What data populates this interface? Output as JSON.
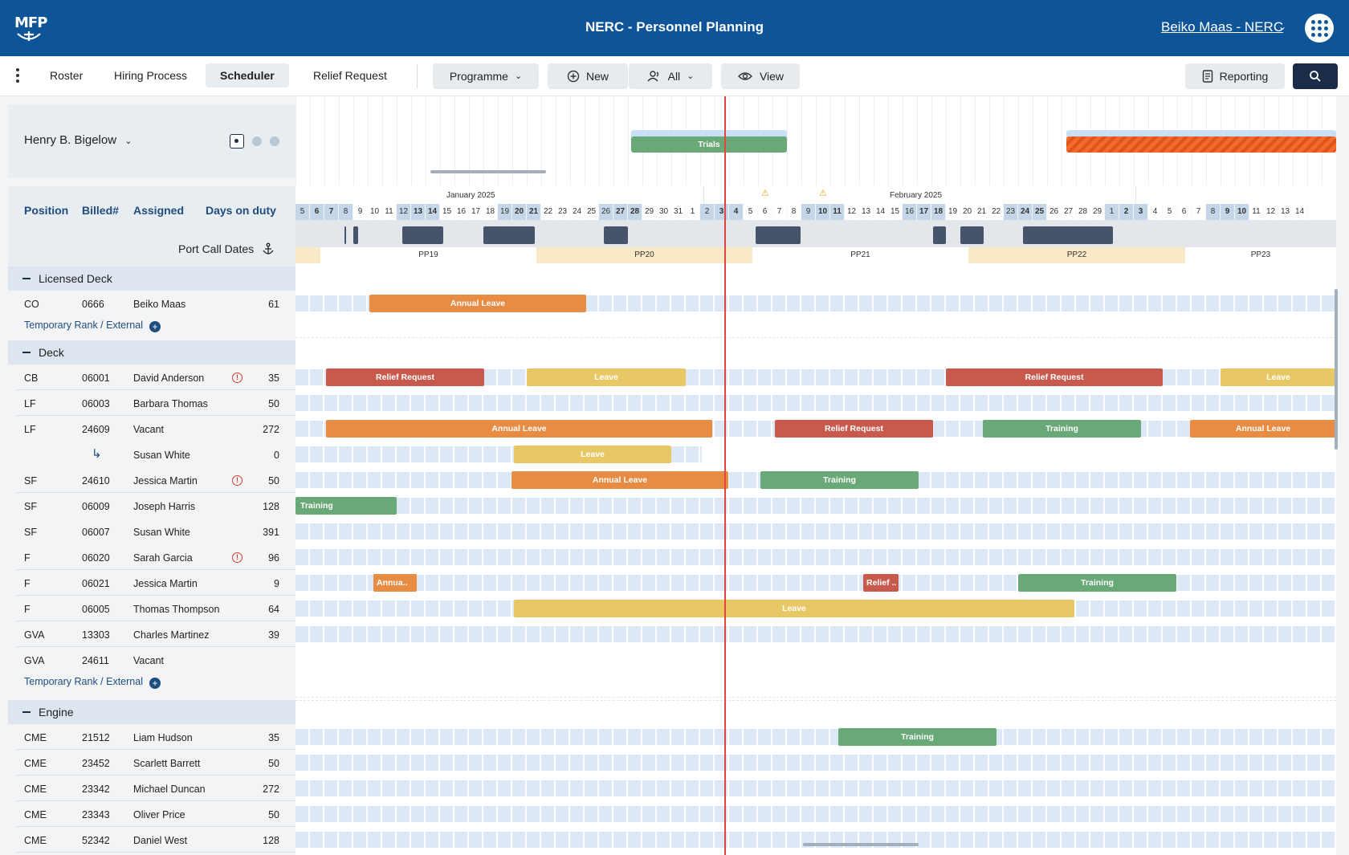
{
  "app": {
    "logo": "MFP",
    "title": "NERC - Personnel Planning",
    "user": "Beiko Maas - NERC"
  },
  "nav": {
    "tabs": [
      "Roster",
      "Hiring Process",
      "Scheduler",
      "Relief Request"
    ],
    "active_tab": "Scheduler"
  },
  "toolbar": {
    "programme": "Programme",
    "new": "New",
    "all": "All",
    "view": "View",
    "reporting": "Reporting"
  },
  "person": {
    "name": "Henry B. Bigelow"
  },
  "top_events": {
    "trials": "Trials"
  },
  "columns": {
    "position": "Position",
    "billed": "Billed#",
    "assigned": "Assigned",
    "days_on_duty": "Days on duty",
    "port_call": "Port Call Dates"
  },
  "months": [
    "January 2025",
    "February 2025"
  ],
  "pay_periods": [
    "PP19",
    "PP20",
    "PP21",
    "PP22",
    "PP23"
  ],
  "temp_rank_label": "Temporary Rank / External",
  "groups": [
    {
      "name": "Licensed Deck",
      "crew": [
        {
          "pos": "CO",
          "billed": "0666",
          "name": "Beiko Maas",
          "days": "61",
          "alert": false
        }
      ]
    },
    {
      "name": "Deck",
      "crew": [
        {
          "pos": "CB",
          "billed": "06001",
          "name": "David Anderson",
          "days": "35",
          "alert": true
        },
        {
          "pos": "LF",
          "billed": "06003",
          "name": "Barbara Thomas",
          "days": "50",
          "alert": false
        },
        {
          "pos": "LF",
          "billed": "24609",
          "name": "Vacant",
          "days": "272",
          "alert": false
        },
        {
          "pos": "↳",
          "billed": "",
          "name": "Susan White",
          "days": "0",
          "alert": false
        },
        {
          "pos": "SF",
          "billed": "24610",
          "name": "Jessica Martin",
          "days": "50",
          "alert": true
        },
        {
          "pos": "SF",
          "billed": "06009",
          "name": "Joseph Harris",
          "days": "128",
          "alert": false
        },
        {
          "pos": "SF",
          "billed": "06007",
          "name": "Susan White",
          "days": "391",
          "alert": false
        },
        {
          "pos": "F",
          "billed": "06020",
          "name": "Sarah Garcia",
          "days": "96",
          "alert": true
        },
        {
          "pos": "F",
          "billed": "06021",
          "name": "Jessica Martin",
          "days": "9",
          "alert": false
        },
        {
          "pos": "F",
          "billed": "06005",
          "name": "Thomas Thompson",
          "days": "64",
          "alert": false
        },
        {
          "pos": "GVA",
          "billed": "13303",
          "name": "Charles Martinez",
          "days": "39",
          "alert": false
        },
        {
          "pos": "GVA",
          "billed": "24611",
          "name": "Vacant",
          "days": "",
          "alert": false
        }
      ]
    },
    {
      "name": "Engine",
      "crew": [
        {
          "pos": "CME",
          "billed": "21512",
          "name": "Liam Hudson",
          "days": "35",
          "alert": false
        },
        {
          "pos": "CME",
          "billed": "23452",
          "name": "Scarlett Barrett",
          "days": "50",
          "alert": false
        },
        {
          "pos": "CME",
          "billed": "23342",
          "name": "Michael Duncan",
          "days": "272",
          "alert": false
        },
        {
          "pos": "CME",
          "billed": "23343",
          "name": "Oliver Price",
          "days": "50",
          "alert": false
        },
        {
          "pos": "CME",
          "billed": "52342",
          "name": "Daniel West",
          "days": "128",
          "alert": false
        }
      ]
    }
  ],
  "days": [
    "5",
    "6",
    "7",
    "8",
    "9",
    "10",
    "11",
    "12",
    "13",
    "14",
    "15",
    "16",
    "17",
    "18",
    "19",
    "20",
    "21",
    "22",
    "23",
    "24",
    "25",
    "26",
    "27",
    "28",
    "29",
    "30",
    "31",
    "1",
    "2",
    "3",
    "4",
    "5",
    "6",
    "7",
    "8",
    "9",
    "10",
    "11",
    "12",
    "13",
    "14",
    "15",
    "16",
    "17",
    "18",
    "19",
    "20",
    "21",
    "22",
    "23",
    "24",
    "25",
    "26",
    "27",
    "28",
    "29",
    "1",
    "2",
    "3",
    "4",
    "5",
    "6",
    "7",
    "8",
    "9",
    "10",
    "11",
    "12",
    "13",
    "14"
  ],
  "events": {
    "annual_leave": "Annual Leave",
    "relief_request": "Relief Request",
    "leave": "Leave",
    "training": "Training",
    "annual_short": "Annua..",
    "relief_short": "Relief .."
  },
  "colors": {
    "header": "#0d5598",
    "annual": "#e88c44",
    "relief": "#c85a4d",
    "leave": "#e8c865",
    "training": "#68a977",
    "today": "#e0463c"
  }
}
